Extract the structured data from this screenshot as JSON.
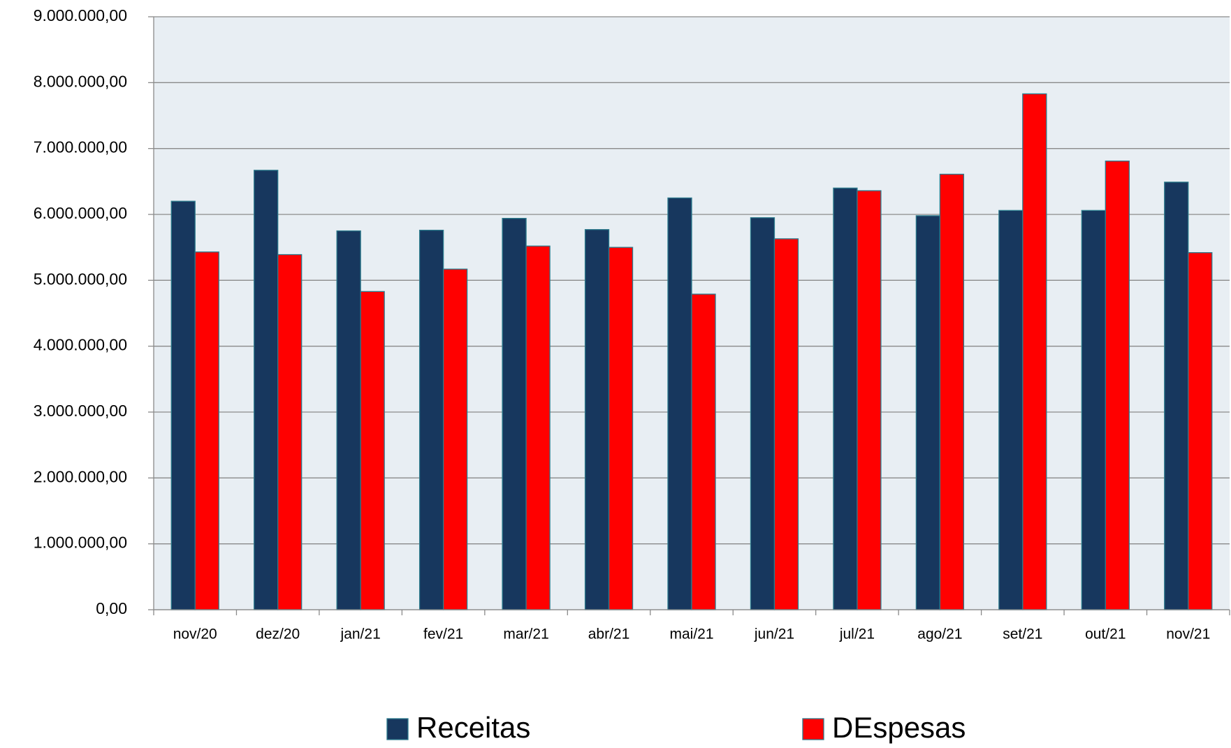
{
  "chart_data": {
    "type": "bar",
    "categories": [
      "nov/20",
      "dez/20",
      "jan/21",
      "fev/21",
      "mar/21",
      "abr/21",
      "mai/21",
      "jun/21",
      "jul/21",
      "ago/21",
      "set/21",
      "out/21",
      "nov/21"
    ],
    "series": [
      {
        "name": "Receitas",
        "color": "#17375e",
        "values": [
          6200000,
          6670000,
          5750000,
          5760000,
          5940000,
          5770000,
          6250000,
          5950000,
          6400000,
          5980000,
          6060000,
          6060000,
          6490000
        ]
      },
      {
        "name": "DEspesas",
        "color": "#ff0000",
        "values": [
          5430000,
          5390000,
          4830000,
          5170000,
          5520000,
          5500000,
          4790000,
          5630000,
          6360000,
          6610000,
          7830000,
          6810000,
          5420000
        ]
      }
    ],
    "ylim": [
      0,
      9000000
    ],
    "yticks": [
      {
        "value": 0,
        "label": "0,00"
      },
      {
        "value": 1000000,
        "label": "1.000.000,00"
      },
      {
        "value": 2000000,
        "label": "2.000.000,00"
      },
      {
        "value": 3000000,
        "label": "3.000.000,00"
      },
      {
        "value": 4000000,
        "label": "4.000.000,00"
      },
      {
        "value": 5000000,
        "label": "5.000.000,00"
      },
      {
        "value": 6000000,
        "label": "6.000.000,00"
      },
      {
        "value": 7000000,
        "label": "7.000.000,00"
      },
      {
        "value": 8000000,
        "label": "8.000.000,00"
      },
      {
        "value": 9000000,
        "label": "9.000.000,00"
      }
    ],
    "grid": true
  }
}
